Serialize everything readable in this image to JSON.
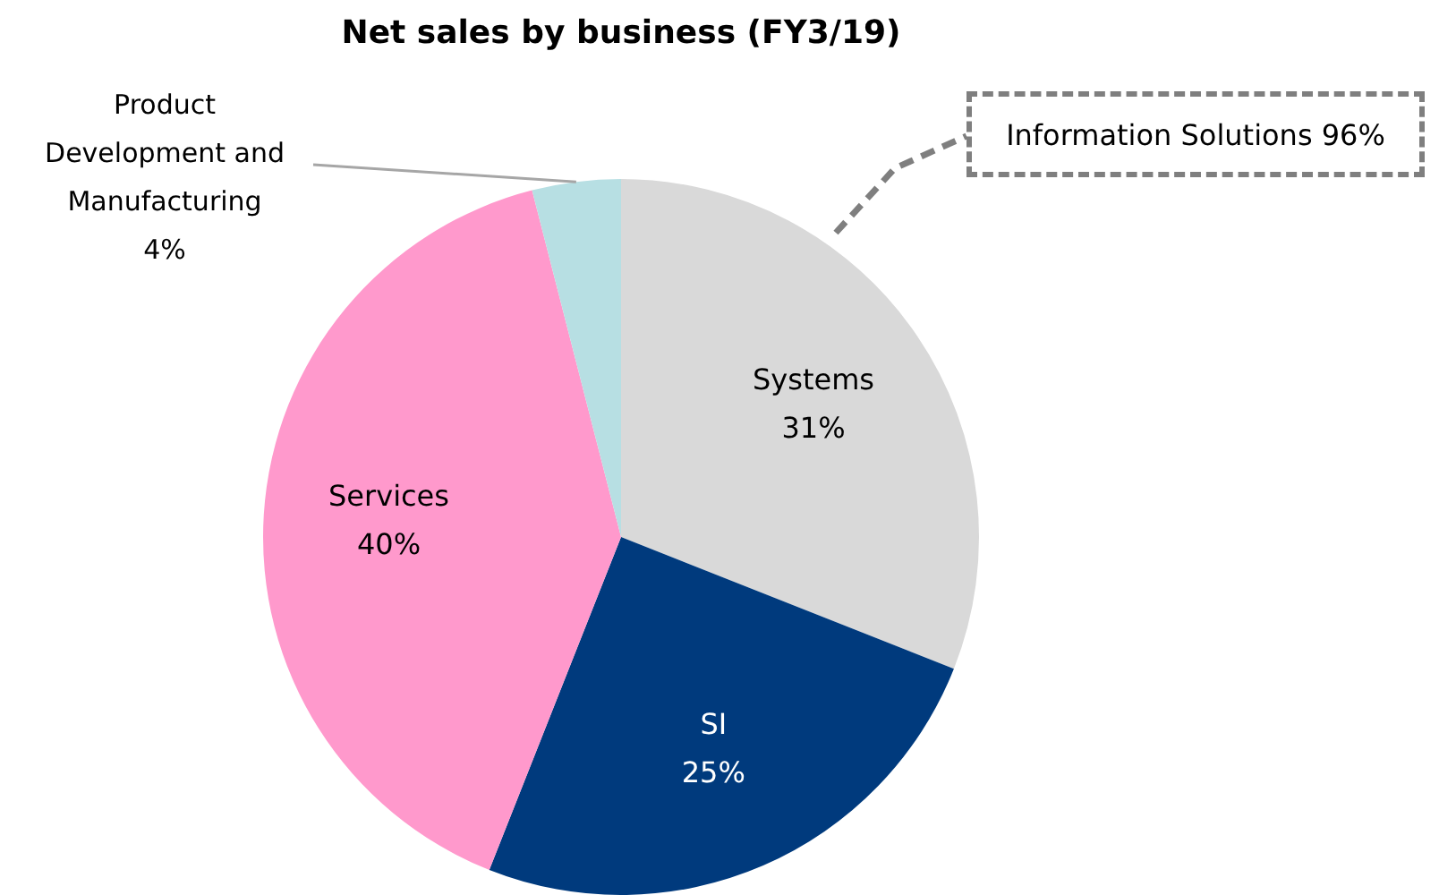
{
  "chart_data": {
    "type": "pie",
    "title": "Net sales by business (FY3/19)",
    "categories": [
      "Systems",
      "SI",
      "Services",
      "Product Development and Manufacturing"
    ],
    "values": [
      31,
      25,
      40,
      4
    ],
    "value_labels": [
      "31%",
      "25%",
      "40%",
      "4%"
    ],
    "colors": [
      "#d9d9d9",
      "#003a7d",
      "#ff99cc",
      "#b7dfe3"
    ],
    "legend": false,
    "annotations": [
      "Information Solutions 96%"
    ]
  }
}
